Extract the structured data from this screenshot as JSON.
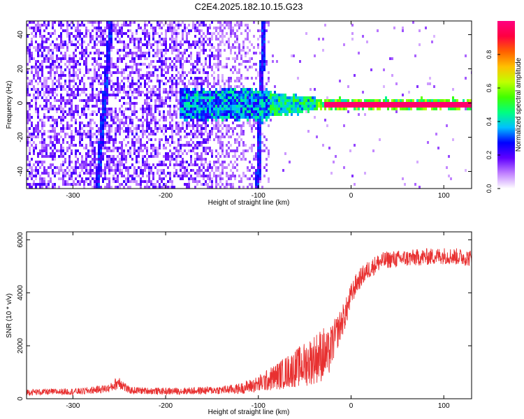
{
  "title": "C2E4.2025.182.10.15.G23",
  "colorbar": {
    "label": "Normalized spectral amplitude",
    "range": [
      0,
      1
    ],
    "ticks": [
      "0.0",
      "0.2",
      "0.4",
      "0.6",
      "0.8"
    ],
    "tick_values": [
      0.0,
      0.2,
      0.4,
      0.6,
      0.8
    ],
    "colors": [
      "#ffffff",
      "#c080ff",
      "#6000ff",
      "#0000ff",
      "#00c0ff",
      "#00ff80",
      "#40ff00",
      "#c0ff00",
      "#ffc000",
      "#ff6000",
      "#ff0040",
      "#ff0080"
    ]
  },
  "chart_data": [
    {
      "type": "heatmap",
      "xlabel": "Height of straight line (km)",
      "ylabel": "Frequency (Hz)",
      "xlim": [
        -350,
        130
      ],
      "ylim": [
        -50,
        48
      ],
      "x_ticks": [
        -300,
        -200,
        -100,
        0,
        100
      ],
      "x_tick_labels": [
        "-300",
        "-200",
        "-100",
        "0",
        "100"
      ],
      "y_ticks": [
        -40,
        -20,
        0,
        20,
        40
      ],
      "y_tick_labels": [
        "-40",
        "-20",
        "0",
        "20",
        "40"
      ],
      "features": {
        "main_line_frequency_hz": 0,
        "main_line_strong_from_km": -30,
        "noise_region_until_km": -90,
        "tilted_lines": [
          {
            "x_at_top": -260,
            "x_at_bottom": -275
          },
          {
            "x_at_top": -95,
            "x_at_bottom": -102
          }
        ]
      }
    },
    {
      "type": "line",
      "xlabel": "Height of straight line (km)",
      "ylabel": "SNR (10 * v/v)",
      "xlim": [
        -350,
        130
      ],
      "ylim": [
        0,
        6300
      ],
      "x_ticks": [
        -300,
        -200,
        -100,
        0,
        100
      ],
      "x_tick_labels": [
        "-300",
        "-200",
        "-100",
        "0",
        "100"
      ],
      "y_ticks": [
        0,
        2000,
        4000,
        6000
      ],
      "y_tick_labels": [
        "0",
        "2000",
        "4000",
        "6000"
      ],
      "line_color": "#e83030",
      "series": [
        {
          "x": [
            -350,
            -320,
            -290,
            -260,
            -250,
            -240,
            -220,
            -200,
            -170,
            -140,
            -120,
            -100,
            -90,
            -80,
            -70,
            -60,
            -50,
            -40,
            -30,
            -25,
            -20,
            -15,
            -10,
            -5,
            0,
            5,
            10,
            15,
            20,
            30,
            40,
            60,
            80,
            100,
            120,
            130
          ],
          "y": [
            250,
            260,
            280,
            400,
            650,
            320,
            300,
            280,
            300,
            330,
            380,
            550,
            700,
            850,
            1000,
            1150,
            1300,
            1500,
            1700,
            1600,
            2100,
            2500,
            2900,
            3300,
            3900,
            4300,
            4550,
            4750,
            4900,
            5150,
            5250,
            5300,
            5350,
            5400,
            5350,
            5300
          ],
          "noise": [
            120,
            120,
            130,
            160,
            280,
            140,
            130,
            130,
            140,
            160,
            200,
            320,
            420,
            520,
            620,
            720,
            850,
            950,
            1050,
            900,
            800,
            650,
            600,
            550,
            450,
            400,
            380,
            370,
            350,
            350,
            330,
            320,
            320,
            320,
            320,
            320
          ]
        }
      ]
    }
  ]
}
